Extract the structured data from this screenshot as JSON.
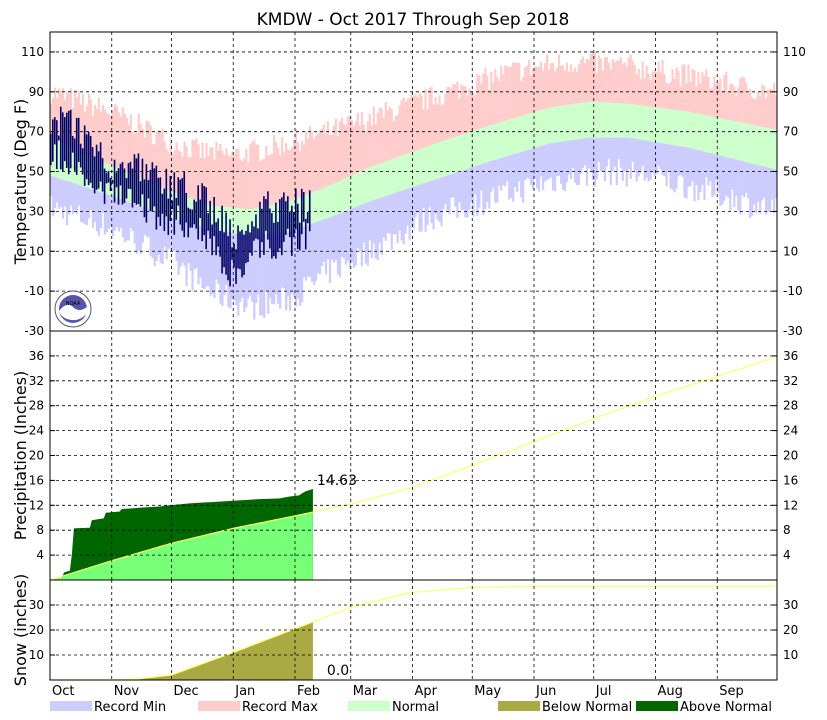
{
  "title": "KMDW - Oct 2017 Through Sep 2018",
  "months": [
    "Oct",
    "Nov",
    "Dec",
    "Jan",
    "Feb",
    "Mar",
    "Apr",
    "May",
    "Jun",
    "Jul",
    "Aug",
    "Sep"
  ],
  "colors": {
    "record_min": "#ccccff",
    "record_max": "#ffcccc",
    "normal": "#ccffcc",
    "observed": "#000066",
    "precip_above": "#006600",
    "precip_observed_fill": "#77ff77",
    "normal_line": "#ffff66",
    "below_normal": "#aaaa44",
    "noaa_logo": "#5555aa"
  },
  "legend": [
    {
      "label": "Record Min",
      "color": "#ccccff"
    },
    {
      "label": "Record Max",
      "color": "#ffcccc"
    },
    {
      "label": "Normal",
      "color": "#ccffcc"
    },
    {
      "label": "Below Normal",
      "color": "#aaaa44"
    },
    {
      "label": "Above Normal",
      "color": "#006600"
    }
  ],
  "chart_data": [
    {
      "type": "area",
      "name": "temperature",
      "ylabel": "Temperature (Deg F)",
      "ylim": [
        -30,
        120
      ],
      "yticks": [
        -30,
        -10,
        10,
        30,
        50,
        70,
        90,
        110
      ],
      "ytick_labels": [
        "-30",
        "-10",
        "10",
        "30",
        "50",
        "70",
        "90",
        "110"
      ],
      "grid": true,
      "x_unit": "day of season (0 = Oct 1 2017)",
      "record_max_anchors": [
        [
          0,
          90
        ],
        [
          30,
          80
        ],
        [
          60,
          65
        ],
        [
          75,
          60
        ],
        [
          92,
          58
        ],
        [
          110,
          62
        ],
        [
          140,
          70
        ],
        [
          170,
          80
        ],
        [
          200,
          90
        ],
        [
          230,
          100
        ],
        [
          260,
          105
        ],
        [
          290,
          103
        ],
        [
          320,
          98
        ],
        [
          350,
          92
        ],
        [
          364,
          90
        ]
      ],
      "record_min_anchors": [
        [
          0,
          32
        ],
        [
          30,
          22
        ],
        [
          60,
          5
        ],
        [
          80,
          -10
        ],
        [
          100,
          -18
        ],
        [
          120,
          -14
        ],
        [
          140,
          0
        ],
        [
          160,
          10
        ],
        [
          190,
          27
        ],
        [
          220,
          36
        ],
        [
          250,
          45
        ],
        [
          280,
          50
        ],
        [
          300,
          48
        ],
        [
          330,
          40
        ],
        [
          364,
          30
        ]
      ],
      "normal_high_anchors": [
        [
          0,
          67
        ],
        [
          30,
          53
        ],
        [
          60,
          40
        ],
        [
          80,
          33
        ],
        [
          100,
          31
        ],
        [
          120,
          35
        ],
        [
          140,
          43
        ],
        [
          160,
          52
        ],
        [
          190,
          63
        ],
        [
          220,
          73
        ],
        [
          250,
          82
        ],
        [
          270,
          85
        ],
        [
          290,
          84
        ],
        [
          320,
          80
        ],
        [
          364,
          71
        ]
      ],
      "normal_low_anchors": [
        [
          0,
          48
        ],
        [
          30,
          38
        ],
        [
          60,
          27
        ],
        [
          80,
          21
        ],
        [
          100,
          18
        ],
        [
          120,
          20
        ],
        [
          140,
          27
        ],
        [
          160,
          35
        ],
        [
          190,
          45
        ],
        [
          220,
          55
        ],
        [
          250,
          64
        ],
        [
          270,
          67
        ],
        [
          290,
          67
        ],
        [
          320,
          62
        ],
        [
          364,
          51
        ]
      ],
      "observed_high_anchors": [
        [
          0,
          78
        ],
        [
          10,
          73
        ],
        [
          20,
          65
        ],
        [
          25,
          60
        ],
        [
          30,
          55
        ],
        [
          40,
          52
        ],
        [
          50,
          48
        ],
        [
          60,
          42
        ],
        [
          65,
          46
        ],
        [
          70,
          35
        ],
        [
          75,
          38
        ],
        [
          80,
          32
        ],
        [
          85,
          28
        ],
        [
          90,
          20
        ],
        [
          95,
          18
        ],
        [
          100,
          22
        ],
        [
          105,
          28
        ],
        [
          110,
          32
        ],
        [
          115,
          30
        ],
        [
          120,
          33
        ],
        [
          125,
          33
        ],
        [
          130,
          32
        ]
      ],
      "observed_low_anchors": [
        [
          0,
          60
        ],
        [
          10,
          55
        ],
        [
          20,
          45
        ],
        [
          25,
          40
        ],
        [
          30,
          38
        ],
        [
          40,
          35
        ],
        [
          50,
          30
        ],
        [
          60,
          25
        ],
        [
          65,
          28
        ],
        [
          70,
          20
        ],
        [
          75,
          22
        ],
        [
          80,
          12
        ],
        [
          85,
          8
        ],
        [
          90,
          0
        ],
        [
          95,
          -2
        ],
        [
          100,
          5
        ],
        [
          105,
          12
        ],
        [
          110,
          15
        ],
        [
          115,
          10
        ],
        [
          120,
          15
        ],
        [
          125,
          18
        ],
        [
          130,
          17
        ]
      ]
    },
    {
      "type": "line",
      "name": "precipitation",
      "ylabel": "Precipitation (Inches)",
      "ylim": [
        0,
        40
      ],
      "yticks": [
        4,
        8,
        12,
        16,
        20,
        24,
        28,
        32,
        36
      ],
      "ytick_labels": [
        "4",
        "8",
        "12",
        "16",
        "20",
        "24",
        "28",
        "32",
        "36"
      ],
      "grid": true,
      "annotation": "14.63",
      "observed_total": 14.63,
      "observed_through_day": 132,
      "normal_cumulative_anchors": [
        [
          0,
          0
        ],
        [
          31,
          3.1
        ],
        [
          61,
          5.9
        ],
        [
          92,
          8.3
        ],
        [
          123,
          10.3
        ],
        [
          151,
          12.2
        ],
        [
          181,
          14.8
        ],
        [
          212,
          18.4
        ],
        [
          242,
          22.1
        ],
        [
          273,
          25.9
        ],
        [
          304,
          29.5
        ],
        [
          334,
          32.6
        ],
        [
          364,
          35.8
        ]
      ],
      "observed_cumulative_anchors": [
        [
          0,
          0
        ],
        [
          6,
          0.3
        ],
        [
          7,
          1.2
        ],
        [
          10,
          1.5
        ],
        [
          11,
          4.2
        ],
        [
          12,
          8.3
        ],
        [
          20,
          8.4
        ],
        [
          21,
          9.6
        ],
        [
          27,
          9.9
        ],
        [
          28,
          10.8
        ],
        [
          35,
          11.0
        ],
        [
          36,
          11.4
        ],
        [
          45,
          11.6
        ],
        [
          55,
          11.8
        ],
        [
          60,
          12.0
        ],
        [
          70,
          12.3
        ],
        [
          85,
          12.6
        ],
        [
          95,
          12.8
        ],
        [
          105,
          13.0
        ],
        [
          115,
          13.1
        ],
        [
          120,
          13.4
        ],
        [
          125,
          13.6
        ],
        [
          128,
          14.2
        ],
        [
          132,
          14.63
        ]
      ]
    },
    {
      "type": "line",
      "name": "snow",
      "ylabel": "Snow (inches)",
      "ylim": [
        0,
        40
      ],
      "yticks": [
        10,
        20,
        30
      ],
      "ytick_labels": [
        "10",
        "20",
        "30"
      ],
      "grid": true,
      "annotation": "0.0",
      "observed_total": 0.0,
      "observed_through_day": 132,
      "normal_cumulative_anchors": [
        [
          0,
          0
        ],
        [
          31,
          0
        ],
        [
          45,
          0.5
        ],
        [
          61,
          2
        ],
        [
          92,
          11
        ],
        [
          123,
          20.5
        ],
        [
          151,
          29
        ],
        [
          181,
          35
        ],
        [
          212,
          37
        ],
        [
          242,
          37.5
        ],
        [
          273,
          37.5
        ],
        [
          304,
          37.5
        ],
        [
          334,
          37.5
        ],
        [
          364,
          37.5
        ]
      ]
    }
  ]
}
